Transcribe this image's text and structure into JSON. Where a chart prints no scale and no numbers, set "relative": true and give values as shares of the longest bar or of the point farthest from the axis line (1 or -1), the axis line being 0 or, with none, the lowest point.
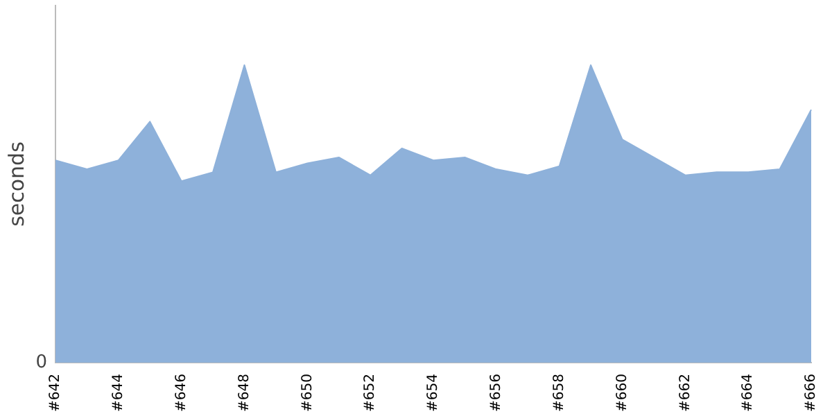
{
  "chart_data": {
    "type": "area",
    "ylabel": "seconds",
    "relative": true,
    "grid": false,
    "legend": false,
    "annotations": [
      "0"
    ],
    "categories": [
      "#642",
      null,
      "#644",
      null,
      "#646",
      null,
      "#648",
      null,
      "#650",
      null,
      "#652",
      null,
      "#654",
      null,
      "#656",
      null,
      "#658",
      null,
      "#660",
      null,
      "#662",
      null,
      "#664",
      null,
      "#666"
    ],
    "series": [
      {
        "color": "#8eb1da",
        "values": [
          0.68,
          0.65,
          0.68,
          0.81,
          0.61,
          0.64,
          1,
          0.64,
          0.67,
          0.69,
          0.63,
          0.72,
          0.68,
          0.69,
          0.65,
          0.63,
          0.66,
          1,
          0.75,
          0.69,
          0.63,
          0.64,
          0.64,
          0.65,
          0.85
        ]
      }
    ]
  }
}
